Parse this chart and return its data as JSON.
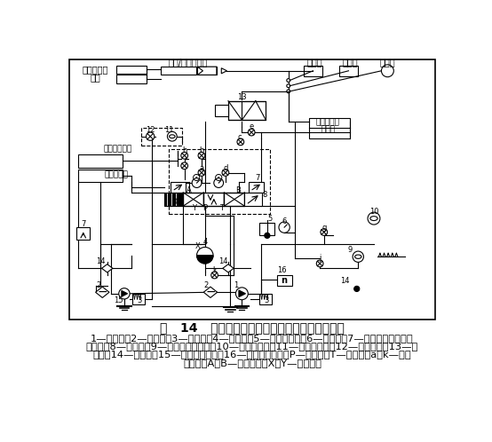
{
  "title": "图   14   四通电液比例方向阀典型的稳态试验回路",
  "caption_lines": [
    "1—液压源；2—过滤器；3—溢流阀；4—蓄能器；5—温度传感器；6—压力表；7—压力传感器或压差",
    "传感器；8—被试鄀；9—泄漏流量传感器；10—温度指示器；11—流量传感器；12—备用旁通；13—加",
    "载鄀；14—单向鄀；15—液压先导油源；16—电压力传感器；P—供油口；T—回油口；a～k—正向",
    "截止鄀；A和B—控制油口；X和Y—先导油口"
  ],
  "bg_color": "#ffffff"
}
